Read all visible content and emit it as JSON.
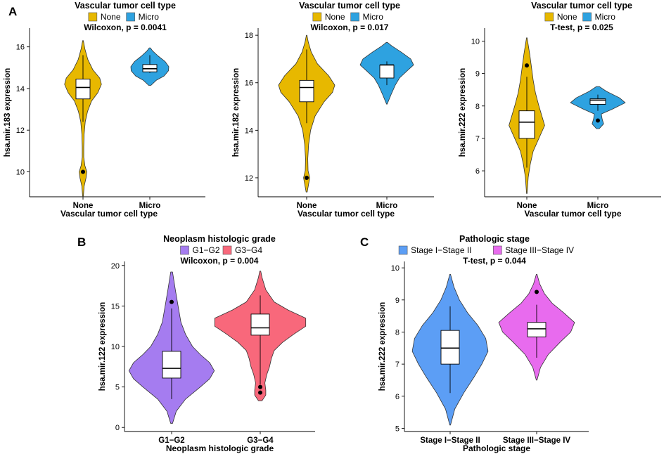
{
  "panel_labels": [
    "A",
    "B",
    "C"
  ],
  "chart_data": [
    {
      "type": "violin",
      "panel": "A",
      "title": "Vascular tumor cell type",
      "test": "Wilcoxon, p = 0.0041",
      "xlabel": "Vascular tumor cell type",
      "ylabel": "hsa.mir.183 expression",
      "ylim": [
        8.8,
        16.9
      ],
      "yticks": [
        10,
        12,
        14,
        16
      ],
      "groups": [
        {
          "name": "None",
          "color": "#E7B800",
          "min": 8.8,
          "max": 16.3,
          "shape": [
            [
              8.8,
              0.02
            ],
            [
              9.3,
              0.06
            ],
            [
              9.7,
              0.16
            ],
            [
              10.0,
              0.2
            ],
            [
              10.3,
              0.1
            ],
            [
              10.7,
              0.04
            ],
            [
              11.2,
              0.04
            ],
            [
              11.8,
              0.06
            ],
            [
              12.4,
              0.12
            ],
            [
              12.9,
              0.24
            ],
            [
              13.4,
              0.45
            ],
            [
              13.8,
              0.78
            ],
            [
              14.2,
              0.97
            ],
            [
              14.5,
              0.88
            ],
            [
              14.9,
              0.52
            ],
            [
              15.4,
              0.25
            ],
            [
              15.9,
              0.1
            ],
            [
              16.3,
              0.02
            ]
          ],
          "box": {
            "q1": 13.5,
            "median": 14.05,
            "q3": 14.45,
            "whisker_low": 12.4,
            "whisker_high": 15.6
          },
          "outliers": [
            10.0
          ]
        },
        {
          "name": "Micro",
          "color": "#2EA2E0",
          "min": 14.15,
          "max": 15.95,
          "shape": [
            [
              14.15,
              0.06
            ],
            [
              14.4,
              0.35
            ],
            [
              14.6,
              0.75
            ],
            [
              14.85,
              0.98
            ],
            [
              15.05,
              1.0
            ],
            [
              15.3,
              0.8
            ],
            [
              15.55,
              0.45
            ],
            [
              15.8,
              0.15
            ],
            [
              15.95,
              0.03
            ]
          ],
          "box": {
            "q1": 14.8,
            "median": 14.95,
            "q3": 15.15,
            "whisker_low": 14.75,
            "whisker_high": 15.6
          },
          "outliers": []
        }
      ]
    },
    {
      "type": "violin",
      "panel": "A",
      "title": "Vascular tumor cell type",
      "test": "Wilcoxon, p = 0.017",
      "xlabel": "Vascular tumor cell type",
      "ylabel": "hsa.mir.182 expression",
      "ylim": [
        11.2,
        18.3
      ],
      "yticks": [
        12,
        14,
        16,
        18
      ],
      "groups": [
        {
          "name": "None",
          "color": "#E7B800",
          "min": 11.4,
          "max": 18.0,
          "shape": [
            [
              11.4,
              0.02
            ],
            [
              11.8,
              0.08
            ],
            [
              12.0,
              0.11
            ],
            [
              12.3,
              0.05
            ],
            [
              12.8,
              0.04
            ],
            [
              13.4,
              0.07
            ],
            [
              14.0,
              0.14
            ],
            [
              14.6,
              0.3
            ],
            [
              15.2,
              0.62
            ],
            [
              15.6,
              0.92
            ],
            [
              15.9,
              1.0
            ],
            [
              16.3,
              0.78
            ],
            [
              16.8,
              0.38
            ],
            [
              17.3,
              0.16
            ],
            [
              17.7,
              0.06
            ],
            [
              18.0,
              0.01
            ]
          ],
          "box": {
            "q1": 15.2,
            "median": 15.8,
            "q3": 16.1,
            "whisker_low": 14.3,
            "whisker_high": 17.4
          },
          "outliers": [
            12.0
          ]
        },
        {
          "name": "Micro",
          "color": "#2EA2E0",
          "min": 15.1,
          "max": 17.7,
          "shape": [
            [
              15.1,
              0.01
            ],
            [
              15.5,
              0.15
            ],
            [
              15.9,
              0.3
            ],
            [
              16.2,
              0.45
            ],
            [
              16.5,
              0.72
            ],
            [
              16.75,
              0.95
            ],
            [
              17.0,
              0.85
            ],
            [
              17.3,
              0.5
            ],
            [
              17.55,
              0.18
            ],
            [
              17.7,
              0.02
            ]
          ],
          "box": {
            "q1": 16.2,
            "median": 16.75,
            "q3": 16.75,
            "whisker_low": 15.9,
            "whisker_high": 16.9
          },
          "outliers": []
        }
      ]
    },
    {
      "type": "violin",
      "panel": "A",
      "title": "Vascular tumor cell type",
      "test": "T-test, p = 0.025",
      "xlabel": "Vascular tumor cell type",
      "ylabel": "hsa.mir.222 expression",
      "ylim": [
        5.2,
        10.4
      ],
      "yticks": [
        6,
        7,
        8,
        9,
        10
      ],
      "groups": [
        {
          "name": "None",
          "color": "#E7B800",
          "min": 5.3,
          "max": 10.1,
          "shape": [
            [
              5.3,
              0.01
            ],
            [
              5.8,
              0.05
            ],
            [
              6.2,
              0.12
            ],
            [
              6.6,
              0.22
            ],
            [
              7.0,
              0.42
            ],
            [
              7.4,
              0.62
            ],
            [
              7.7,
              0.52
            ],
            [
              8.0,
              0.42
            ],
            [
              8.4,
              0.3
            ],
            [
              8.8,
              0.22
            ],
            [
              9.2,
              0.16
            ],
            [
              9.6,
              0.1
            ],
            [
              10.1,
              0.01
            ]
          ],
          "box": {
            "q1": 7.0,
            "median": 7.5,
            "q3": 7.85,
            "whisker_low": 6.1,
            "whisker_high": 8.9
          },
          "outliers": [
            9.25
          ]
        },
        {
          "name": "Micro",
          "color": "#2EA2E0",
          "min": 7.3,
          "max": 8.6,
          "shape": [
            [
              7.3,
              0.05
            ],
            [
              7.45,
              0.2
            ],
            [
              7.6,
              0.15
            ],
            [
              7.75,
              0.12
            ],
            [
              7.9,
              0.5
            ],
            [
              8.1,
              0.95
            ],
            [
              8.25,
              0.75
            ],
            [
              8.45,
              0.3
            ],
            [
              8.6,
              0.05
            ]
          ],
          "box": {
            "q1": 8.05,
            "median": 8.18,
            "q3": 8.22,
            "whisker_low": 7.85,
            "whisker_high": 8.35
          },
          "outliers": [
            7.55
          ]
        }
      ]
    },
    {
      "type": "violin",
      "panel": "B",
      "title": "Neoplasm histologic grade",
      "test": "Wilcoxon, p = 0.004",
      "xlabel": "Neoplasm histologic grade",
      "ylabel": "hsa.mir.122 expression",
      "ylim": [
        -0.5,
        20.5
      ],
      "yticks": [
        0,
        5,
        10,
        15,
        20
      ],
      "groups": [
        {
          "name": "G1−G2",
          "color": "#A57CF0",
          "min": 0.5,
          "max": 19.2,
          "shape": [
            [
              0.5,
              0.02
            ],
            [
              2.0,
              0.1
            ],
            [
              3.5,
              0.3
            ],
            [
              5.0,
              0.62
            ],
            [
              6.0,
              0.82
            ],
            [
              7.0,
              0.92
            ],
            [
              8.0,
              0.82
            ],
            [
              9.0,
              0.62
            ],
            [
              10.0,
              0.45
            ],
            [
              11.5,
              0.3
            ],
            [
              13.0,
              0.2
            ],
            [
              15.0,
              0.14
            ],
            [
              17.0,
              0.08
            ],
            [
              19.2,
              0.02
            ]
          ],
          "box": {
            "q1": 6.1,
            "median": 7.3,
            "q3": 9.4,
            "whisker_low": 3.5,
            "whisker_high": 14.7
          },
          "outliers": [
            15.5
          ]
        },
        {
          "name": "G3−G4",
          "color": "#F8687B",
          "min": 3.3,
          "max": 19.3,
          "shape": [
            [
              3.3,
              0.04
            ],
            [
              4.0,
              0.12
            ],
            [
              4.6,
              0.12
            ],
            [
              5.5,
              0.1
            ],
            [
              6.5,
              0.14
            ],
            [
              7.5,
              0.2
            ],
            [
              8.5,
              0.24
            ],
            [
              9.5,
              0.3
            ],
            [
              10.5,
              0.48
            ],
            [
              11.5,
              0.72
            ],
            [
              12.5,
              0.98
            ],
            [
              13.5,
              0.98
            ],
            [
              14.5,
              0.6
            ],
            [
              15.5,
              0.3
            ],
            [
              17.0,
              0.12
            ],
            [
              18.5,
              0.04
            ],
            [
              19.3,
              0.01
            ]
          ],
          "box": {
            "q1": 11.4,
            "median": 12.3,
            "q3": 14.0,
            "whisker_low": 5.3,
            "whisker_high": 16.3
          },
          "outliers": [
            5.0,
            4.3
          ]
        }
      ]
    },
    {
      "type": "violin",
      "panel": "C",
      "title": "Pathologic stage",
      "test": "T-test, p = 0.044",
      "xlabel": "Pathologic stage",
      "ylabel": "hsa.mir.222 expression",
      "ylim": [
        4.9,
        10.2
      ],
      "yticks": [
        5,
        6,
        7,
        8,
        9,
        10
      ],
      "groups": [
        {
          "name": "Stage I−Stage II",
          "color": "#5C9EF5",
          "min": 5.1,
          "max": 9.8,
          "shape": [
            [
              5.1,
              0.01
            ],
            [
              5.6,
              0.12
            ],
            [
              6.1,
              0.35
            ],
            [
              6.6,
              0.62
            ],
            [
              7.0,
              0.82
            ],
            [
              7.4,
              0.98
            ],
            [
              7.8,
              0.92
            ],
            [
              8.2,
              0.72
            ],
            [
              8.6,
              0.45
            ],
            [
              9.0,
              0.24
            ],
            [
              9.4,
              0.1
            ],
            [
              9.8,
              0.01
            ]
          ],
          "box": {
            "q1": 7.0,
            "median": 7.5,
            "q3": 8.05,
            "whisker_low": 6.1,
            "whisker_high": 8.8
          },
          "outliers": []
        },
        {
          "name": "Stage III−Stage IV",
          "color": "#E86BEE",
          "min": 6.5,
          "max": 9.8,
          "shape": [
            [
              6.5,
              0.01
            ],
            [
              6.9,
              0.1
            ],
            [
              7.3,
              0.3
            ],
            [
              7.7,
              0.62
            ],
            [
              8.0,
              0.88
            ],
            [
              8.3,
              0.98
            ],
            [
              8.6,
              0.7
            ],
            [
              8.9,
              0.4
            ],
            [
              9.2,
              0.2
            ],
            [
              9.5,
              0.08
            ],
            [
              9.8,
              0.01
            ]
          ],
          "box": {
            "q1": 7.85,
            "median": 8.1,
            "q3": 8.3,
            "whisker_low": 7.2,
            "whisker_high": 8.85
          },
          "outliers": [
            9.25
          ]
        }
      ]
    }
  ]
}
